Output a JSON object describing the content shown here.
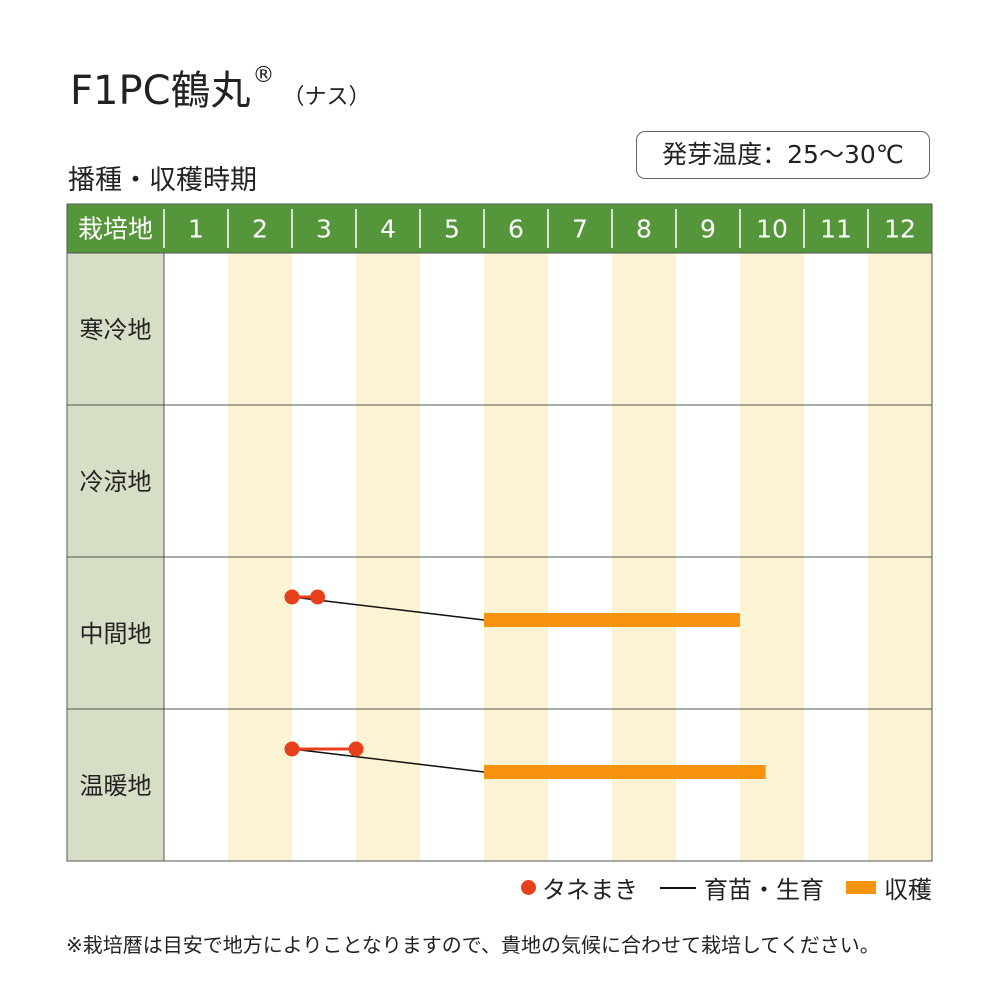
{
  "title": {
    "main": "F1PC鶴丸",
    "reg": "®",
    "sub": "（ナス）"
  },
  "subtitle": "播種・収穫時期",
  "temp_label": "発芽温度：25〜30℃",
  "colors": {
    "header_green": "#55963a",
    "label_bg": "#d6dfc6",
    "stripe": "#fbf3d4",
    "sowing": "#e8401c",
    "harvest": "#f7930f",
    "nursery": "#111111"
  },
  "chart_data": {
    "type": "gantt",
    "corner_label": "栽培地",
    "months": [
      "1",
      "2",
      "3",
      "4",
      "5",
      "6",
      "7",
      "8",
      "9",
      "10",
      "11",
      "12"
    ],
    "regions": [
      {
        "name": "寒冷地",
        "sowing": null,
        "harvest": null
      },
      {
        "name": "冷涼地",
        "sowing": null,
        "harvest": null
      },
      {
        "name": "中間地",
        "sowing": [
          3.0,
          3.4
        ],
        "harvest": [
          6.0,
          10.0
        ]
      },
      {
        "name": "温暖地",
        "sowing": [
          3.0,
          4.0
        ],
        "harvest": [
          6.0,
          10.4
        ]
      }
    ]
  },
  "legend": {
    "sowing": "タネまき",
    "nursery": "育苗・生育",
    "harvest": "収穫"
  },
  "footnote": "※栽培暦は目安で地方によりことなりますので、貴地の気候に合わせて栽培してください。"
}
